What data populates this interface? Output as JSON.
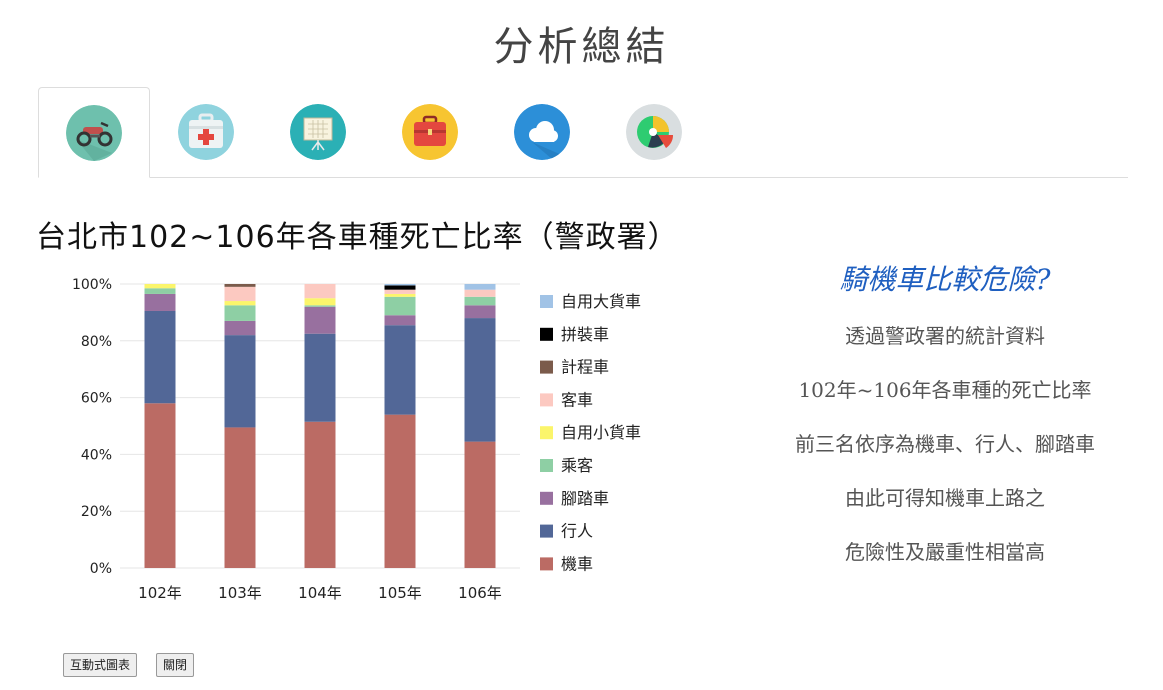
{
  "page": {
    "title": "分析總結"
  },
  "tabs": [
    {
      "icon": "motorcycle-icon",
      "active": true
    },
    {
      "icon": "first-aid-kit-icon",
      "active": false
    },
    {
      "icon": "presentation-board-icon",
      "active": false
    },
    {
      "icon": "briefcase-icon",
      "active": false
    },
    {
      "icon": "cloud-icon",
      "active": false
    },
    {
      "icon": "pie-chart-icon",
      "active": false
    }
  ],
  "chart_title": "台北市102~106年各車種死亡比率（警政署）",
  "chart_data": {
    "type": "bar",
    "stacked": true,
    "percent": true,
    "categories": [
      "102年",
      "103年",
      "104年",
      "105年",
      "106年"
    ],
    "ylim": [
      0,
      100
    ],
    "yticks": [
      "0%",
      "20%",
      "40%",
      "60%",
      "80%",
      "100%"
    ],
    "legend_position": "right",
    "series": [
      {
        "name": "機車",
        "color": "#bb6b64",
        "values": [
          58,
          49.5,
          51.5,
          54,
          44.5
        ]
      },
      {
        "name": "行人",
        "color": "#526797",
        "values": [
          32.5,
          32.5,
          31,
          31.5,
          43.5
        ]
      },
      {
        "name": "腳踏車",
        "color": "#98709f",
        "values": [
          6,
          5,
          9.5,
          3.5,
          4.5
        ]
      },
      {
        "name": "乘客",
        "color": "#8ecfa4",
        "values": [
          2,
          5.5,
          0.5,
          6.5,
          3
        ]
      },
      {
        "name": "自用小貨車",
        "color": "#fbf56b",
        "values": [
          1.5,
          1.5,
          2.5,
          1,
          0
        ]
      },
      {
        "name": "客車",
        "color": "#fcc9c1",
        "values": [
          0,
          5,
          5,
          1.5,
          2.5
        ]
      },
      {
        "name": "計程車",
        "color": "#7b5b4b",
        "values": [
          0,
          1,
          0,
          0,
          0
        ]
      },
      {
        "name": "拼裝車",
        "color": "#000000",
        "values": [
          0,
          0,
          0,
          1.5,
          0
        ]
      },
      {
        "name": "自用大貨車",
        "color": "#a1c3e6",
        "values": [
          0,
          0,
          0,
          0.5,
          2
        ]
      }
    ]
  },
  "summary": {
    "heading": "騎機車比較危險?",
    "lines": [
      "透過警政署的統計資料",
      "102年~106年各車種的死亡比率",
      "前三名依序為機車、行人、腳踏車",
      "由此可得知機車上路之",
      "危險性及嚴重性相當高"
    ]
  },
  "buttons": {
    "interactive_chart": "互動式圖表",
    "close": "關閉"
  }
}
